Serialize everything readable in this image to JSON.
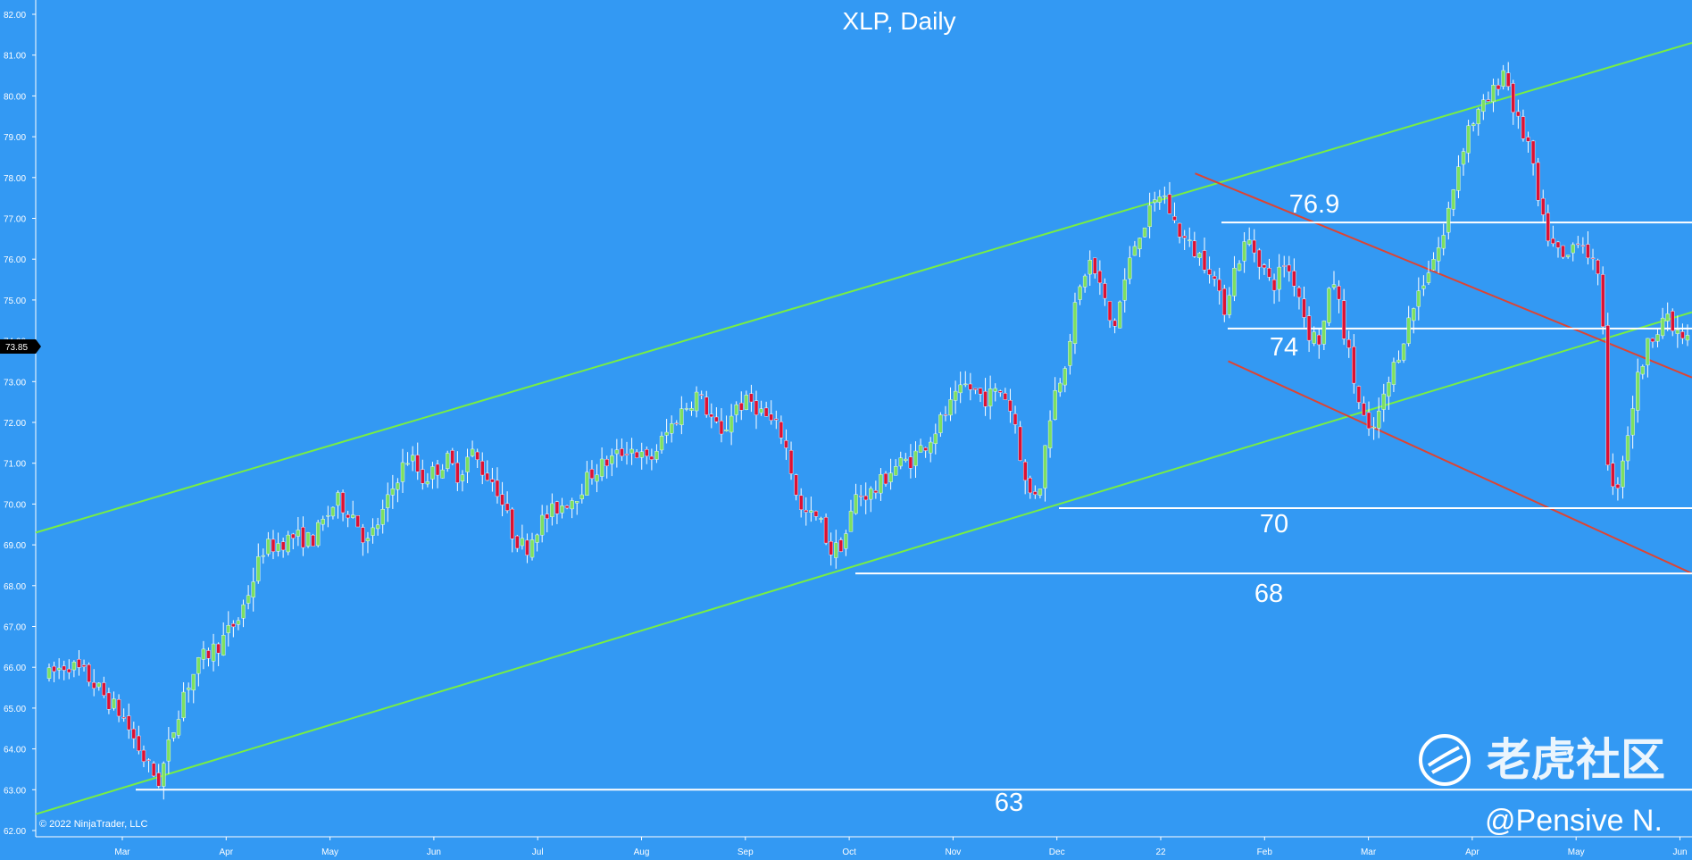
{
  "chart_data": {
    "type": "candlestick",
    "title": "XLP, Daily",
    "y_ticks": [
      "62.00",
      "63.00",
      "64.00",
      "65.00",
      "66.00",
      "67.00",
      "68.00",
      "69.00",
      "70.00",
      "71.00",
      "72.00",
      "73.00",
      "74.00",
      "75.00",
      "76.00",
      "77.00",
      "78.00",
      "79.00",
      "80.00",
      "81.00",
      "82.00"
    ],
    "ylim": [
      62.0,
      82.0
    ],
    "x_ticks": [
      "Mar",
      "Apr",
      "May",
      "Jun",
      "Jul",
      "Aug",
      "Sep",
      "Oct",
      "Nov",
      "Dec",
      "22",
      "Feb",
      "Mar",
      "Apr",
      "May",
      "Jun"
    ],
    "last_price": "73.85",
    "annotations": [
      "76.9",
      "74",
      "70",
      "68",
      "63"
    ],
    "horizontal_levels": [
      76.9,
      74.3,
      69.9,
      68.3,
      63.0
    ],
    "channel_lines": [
      {
        "color": "#77ee44",
        "from": [
          0,
          69.3
        ],
        "to": [
          1,
          81.3
        ]
      },
      {
        "color": "#77ee44",
        "from": [
          0,
          62.4
        ],
        "to": [
          1,
          74.7
        ]
      }
    ],
    "downtrend_lines": [
      {
        "color": "#dd4433",
        "from": [
          0.7,
          78.1
        ],
        "to": [
          1,
          73.1
        ]
      },
      {
        "color": "#dd4433",
        "from": [
          0.72,
          73.5
        ],
        "to": [
          1,
          68.3
        ]
      }
    ],
    "path_points": [
      [
        0,
        65.8
      ],
      [
        3,
        66.1
      ],
      [
        6,
        65.8
      ],
      [
        9,
        65.3
      ],
      [
        12,
        64.8
      ],
      [
        14,
        64.2
      ],
      [
        16,
        63.6
      ],
      [
        18,
        63.2
      ],
      [
        20,
        64.3
      ],
      [
        22,
        65.4
      ],
      [
        25,
        66.2
      ],
      [
        28,
        66.6
      ],
      [
        31,
        67.2
      ],
      [
        33,
        68.0
      ],
      [
        35,
        68.9
      ],
      [
        37,
        69.0
      ],
      [
        40,
        69.2
      ],
      [
        43,
        69.1
      ],
      [
        45,
        69.6
      ],
      [
        47,
        70.1
      ],
      [
        50,
        69.7
      ],
      [
        52,
        69.0
      ],
      [
        55,
        69.9
      ],
      [
        57,
        70.7
      ],
      [
        59,
        71.2
      ],
      [
        61,
        70.6
      ],
      [
        63,
        70.8
      ],
      [
        65,
        71.1
      ],
      [
        67,
        70.7
      ],
      [
        69,
        71.3
      ],
      [
        71,
        70.8
      ],
      [
        73,
        70.5
      ],
      [
        76,
        69.2
      ],
      [
        78,
        68.9
      ],
      [
        80,
        69.5
      ],
      [
        83,
        69.9
      ],
      [
        86,
        70.2
      ],
      [
        89,
        70.8
      ],
      [
        92,
        71.1
      ],
      [
        95,
        71.4
      ],
      [
        98,
        71.0
      ],
      [
        100,
        71.5
      ],
      [
        103,
        72.2
      ],
      [
        106,
        72.7
      ],
      [
        108,
        72.2
      ],
      [
        110,
        71.6
      ],
      [
        112,
        72.4
      ],
      [
        115,
        72.5
      ],
      [
        118,
        72.0
      ],
      [
        120,
        71.7
      ],
      [
        123,
        69.8
      ],
      [
        126,
        69.6
      ],
      [
        128,
        68.8
      ],
      [
        130,
        69.1
      ],
      [
        132,
        70.2
      ],
      [
        135,
        70.3
      ],
      [
        138,
        70.9
      ],
      [
        141,
        71.1
      ],
      [
        144,
        71.6
      ],
      [
        147,
        72.3
      ],
      [
        150,
        72.9
      ],
      [
        153,
        72.6
      ],
      [
        156,
        72.8
      ],
      [
        158,
        72.0
      ],
      [
        160,
        70.2
      ],
      [
        162,
        70.4
      ],
      [
        164,
        72.5
      ],
      [
        166,
        73.4
      ],
      [
        168,
        74.9
      ],
      [
        170,
        76.0
      ],
      [
        172,
        75.3
      ],
      [
        174,
        74.2
      ],
      [
        176,
        75.5
      ],
      [
        178,
        76.6
      ],
      [
        180,
        77.1
      ],
      [
        182,
        77.7
      ],
      [
        184,
        76.9
      ],
      [
        186,
        76.4
      ],
      [
        188,
        76.1
      ],
      [
        190,
        75.8
      ],
      [
        192,
        74.7
      ],
      [
        194,
        75.8
      ],
      [
        196,
        76.5
      ],
      [
        198,
        76.0
      ],
      [
        200,
        75.3
      ],
      [
        202,
        75.9
      ],
      [
        204,
        75.4
      ],
      [
        206,
        74.2
      ],
      [
        208,
        74.0
      ],
      [
        210,
        75.6
      ],
      [
        212,
        74.1
      ],
      [
        214,
        72.6
      ],
      [
        216,
        71.6
      ],
      [
        218,
        72.4
      ],
      [
        220,
        73.4
      ],
      [
        222,
        74.3
      ],
      [
        224,
        75.2
      ],
      [
        226,
        75.9
      ],
      [
        228,
        76.5
      ],
      [
        230,
        78.0
      ],
      [
        232,
        79.2
      ],
      [
        234,
        79.6
      ],
      [
        236,
        80.0
      ],
      [
        238,
        80.7
      ],
      [
        240,
        79.4
      ],
      [
        242,
        78.8
      ],
      [
        244,
        77.0
      ],
      [
        246,
        76.3
      ],
      [
        248,
        75.9
      ],
      [
        250,
        76.6
      ],
      [
        252,
        76.1
      ],
      [
        254,
        75.1
      ],
      [
        255,
        71.0
      ],
      [
        256,
        70.1
      ],
      [
        258,
        71.6
      ],
      [
        260,
        73.2
      ],
      [
        262,
        74.1
      ],
      [
        264,
        74.6
      ],
      [
        266,
        74.2
      ],
      [
        268,
        74.0
      ]
    ]
  },
  "copyright": "© 2022 NinjaTrader, LLC",
  "watermark": {
    "cn": "老虎社区",
    "handle": "@Pensive N."
  },
  "colors": {
    "background": "#3399f3",
    "up": "#7de060",
    "down": "#dd1133",
    "channel": "#77ee44",
    "trend": "#dd4433",
    "level": "#ffffff"
  }
}
